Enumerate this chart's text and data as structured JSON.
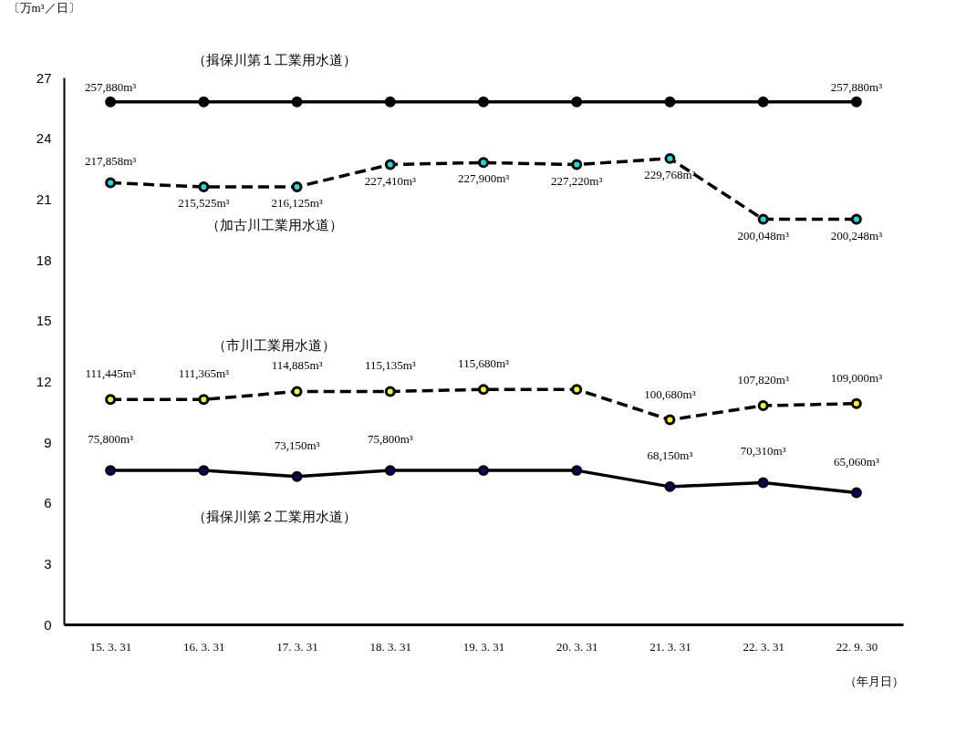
{
  "chart_data": {
    "type": "line",
    "ylabel": "〔万m³／日〕",
    "xlabel": "（年月日）",
    "categories": [
      "15. 3. 31",
      "16. 3. 31",
      "17. 3. 31",
      "18. 3. 31",
      "19. 3. 31",
      "20. 3. 31",
      "21. 3. 31",
      "22. 3. 31",
      "22. 9. 30"
    ],
    "ylim": [
      0,
      27
    ],
    "yticks": [
      0,
      3,
      6,
      9,
      12,
      15,
      18,
      21,
      24,
      27
    ],
    "marker": "circle",
    "series": [
      {
        "name": "（揖保川第１工業用水道）",
        "color": "#000000",
        "line_style": "solid",
        "values": [
          25.8,
          25.8,
          25.8,
          25.8,
          25.8,
          25.8,
          25.8,
          25.8,
          25.8
        ]
      },
      {
        "name": "（加古川工業用水道）",
        "color": "#00e5ee",
        "line_style": "dashed",
        "values": [
          21.8,
          21.6,
          21.6,
          22.7,
          22.8,
          22.7,
          23.0,
          20.0,
          20.0
        ]
      },
      {
        "name": "（市川工業用水道）",
        "color": "#ffff00",
        "line_style": "dashed",
        "values": [
          11.1,
          11.1,
          11.5,
          11.5,
          11.6,
          11.6,
          10.1,
          10.8,
          10.9
        ]
      },
      {
        "name": "（揖保川第２工業用水道）",
        "color": "#000080",
        "line_style": "solid",
        "values": [
          7.6,
          7.6,
          7.3,
          7.6,
          7.6,
          7.6,
          6.8,
          7.0,
          6.5
        ]
      }
    ],
    "annotations": [
      {
        "text": "257,880m³",
        "x": "15. 3. 31",
        "y": 25.8
      },
      {
        "text": "257,880m³",
        "x": "22. 9. 30",
        "y": 25.8
      },
      {
        "text": "217,858m³",
        "x": "15. 3. 31",
        "y": 21.8
      },
      {
        "text": "215,525m³",
        "x": "16. 3. 31",
        "y": 21.6
      },
      {
        "text": "216,125m³",
        "x": "17. 3. 31",
        "y": 21.6
      },
      {
        "text": "227,410m³",
        "x": "18. 3. 31",
        "y": 22.7
      },
      {
        "text": "227,900m³",
        "x": "19. 3. 31",
        "y": 22.8
      },
      {
        "text": "227,220m³",
        "x": "20. 3. 31",
        "y": 22.7
      },
      {
        "text": "229,768m³",
        "x": "21. 3. 31",
        "y": 23.0
      },
      {
        "text": "200,048m³",
        "x": "22. 3. 31",
        "y": 20.0
      },
      {
        "text": "200,248m³",
        "x": "22. 9. 30",
        "y": 20.0
      },
      {
        "text": "111,445m³",
        "x": "15. 3. 31",
        "y": 11.1
      },
      {
        "text": "111,365m³",
        "x": "16. 3. 31",
        "y": 11.1
      },
      {
        "text": "114,885m³",
        "x": "17. 3. 31",
        "y": 11.5
      },
      {
        "text": "115,135m³",
        "x": "18. 3. 31",
        "y": 11.5
      },
      {
        "text": "115,680m³",
        "x": "19. 3. 31",
        "y": 11.6
      },
      {
        "text": "100,680m³",
        "x": "21. 3. 31",
        "y": 10.1
      },
      {
        "text": "107,820m³",
        "x": "22. 3. 31",
        "y": 10.8
      },
      {
        "text": "109,000m³",
        "x": "22. 9. 30",
        "y": 10.9
      },
      {
        "text": "75,800m³",
        "x": "15. 3. 31",
        "y": 7.6
      },
      {
        "text": "73,150m³",
        "x": "17. 3. 31",
        "y": 7.3
      },
      {
        "text": "75,800m³",
        "x": "18. 3. 31",
        "y": 7.6
      },
      {
        "text": "68,150m³",
        "x": "21. 3. 31",
        "y": 6.8
      },
      {
        "text": "70,310m³",
        "x": "22. 3. 31",
        "y": 7.0
      },
      {
        "text": "65,060m³",
        "x": "22. 9. 30",
        "y": 6.5
      }
    ]
  }
}
